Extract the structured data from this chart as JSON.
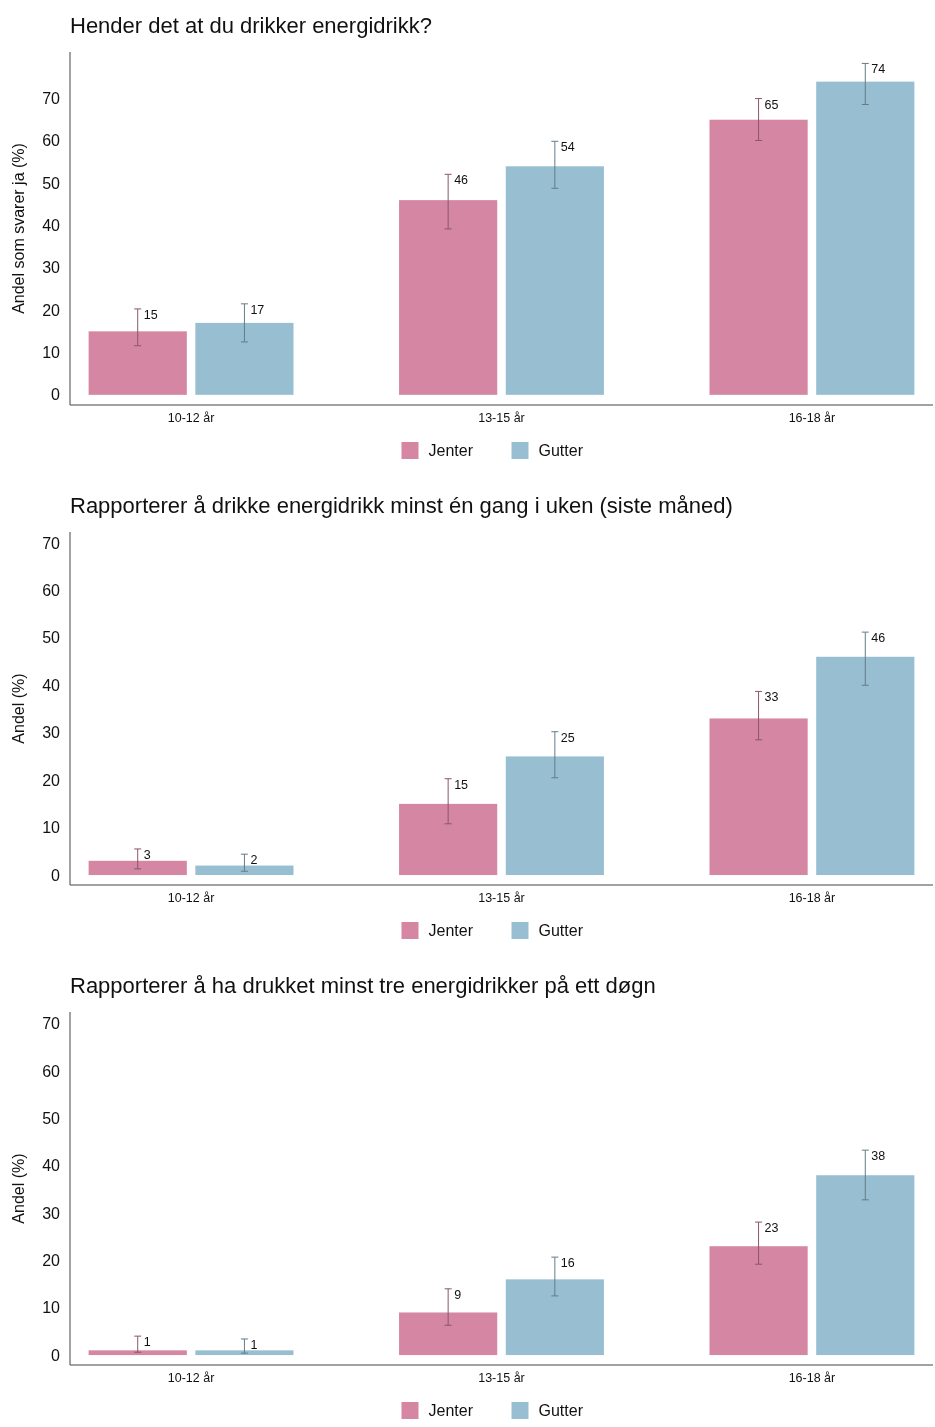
{
  "chart_data": [
    {
      "type": "bar",
      "title": "Hender det at du drikker energidrikk?",
      "ylabel": "Andel som svarer ja (%)",
      "categories": [
        "10-12 år",
        "13-15 år",
        "16-18 år"
      ],
      "series": [
        {
          "name": "Jenter",
          "color": "#d486a2",
          "values": [
            15,
            46,
            65
          ],
          "errors": [
            [
              11.6,
              20.3
            ],
            [
              39.2,
              52.1
            ],
            [
              60.1,
              70
            ]
          ]
        },
        {
          "name": "Gutter",
          "color": "#98bfd1",
          "values": [
            17,
            54,
            74
          ],
          "errors": [
            [
              12.5,
              21.5
            ],
            [
              48.8,
              59.9
            ],
            [
              68.6,
              78.3
            ]
          ]
        }
      ],
      "ylim": [
        -2.4,
        81
      ],
      "yticks": [
        0,
        10,
        20,
        30,
        40,
        50,
        60,
        70
      ],
      "data_labels": true,
      "legend": "bottom",
      "grid": false
    },
    {
      "type": "bar",
      "title": "Rapporterer å drikke energidrikk minst én gang i uken (siste måned)",
      "ylabel": "Andel (%)",
      "categories": [
        "10-12 år",
        "13-15 år",
        "16-18 år"
      ],
      "series": [
        {
          "name": "Jenter",
          "color": "#d486a2",
          "values": [
            3,
            15,
            33
          ],
          "errors": [
            [
              1.3,
              5.5
            ],
            [
              10.8,
              20.3
            ],
            [
              28.5,
              38.7
            ]
          ]
        },
        {
          "name": "Gutter",
          "color": "#98bfd1",
          "values": [
            2,
            25,
            46
          ],
          "errors": [
            [
              0.8,
              4.4
            ],
            [
              20.5,
              30.2
            ],
            [
              40,
              51.2
            ]
          ]
        }
      ],
      "ylim": [
        -2.1,
        72.3
      ],
      "yticks": [
        0,
        10,
        20,
        30,
        40,
        50,
        60,
        70
      ],
      "data_labels": true,
      "legend": "bottom",
      "grid": false
    },
    {
      "type": "bar",
      "title": "Rapporterer å ha drukket minst tre energidrikker på ett døgn",
      "ylabel": "Andel (%)",
      "categories": [
        "10-12 år",
        "13-15 år",
        "16-18 år"
      ],
      "series": [
        {
          "name": "Jenter",
          "color": "#d486a2",
          "values": [
            1,
            9,
            23
          ],
          "errors": [
            [
              0.6,
              4.0
            ],
            [
              6.3,
              14.0
            ],
            [
              19.2,
              28.1
            ]
          ]
        },
        {
          "name": "Gutter",
          "color": "#98bfd1",
          "values": [
            1,
            16,
            38
          ],
          "errors": [
            [
              0.4,
              3.4
            ],
            [
              12.5,
              20.7
            ],
            [
              32.8,
              43.3
            ]
          ]
        }
      ],
      "ylim": [
        -2.1,
        72.5
      ],
      "yticks": [
        0,
        10,
        20,
        30,
        40,
        50,
        60,
        70
      ],
      "data_labels": true,
      "legend": "bottom",
      "grid": false
    }
  ]
}
